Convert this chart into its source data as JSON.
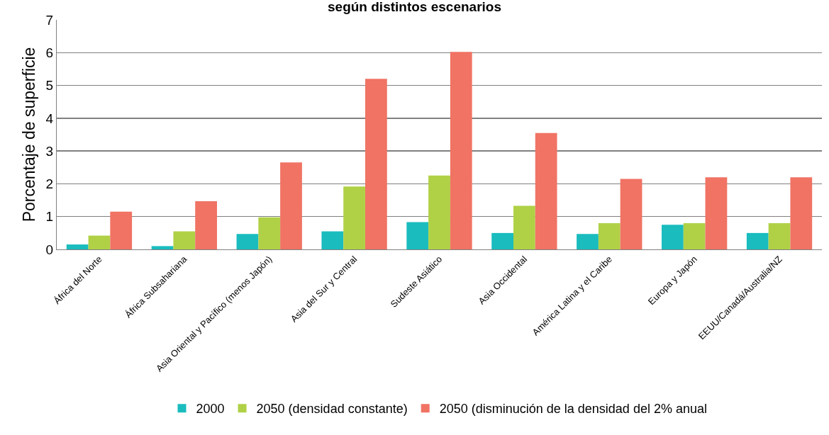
{
  "chart_data": {
    "type": "bar",
    "title": "según distintos escenarios",
    "ylabel": "Porcentaje de superficie",
    "categories": [
      "África del Norte",
      "África Subsahariana",
      "Asia Oriental y Pacífico (menos Japón)",
      "Asia del Sur y Central",
      "Sudeste Asiático",
      "Asia Occidental",
      "América Latina y el Caribe",
      "Europa y Japón",
      "EEUU/Canadá/Australia/NZ"
    ],
    "series": [
      {
        "name": "2000",
        "color": "#1abcbe",
        "values": [
          0.15,
          0.1,
          0.47,
          0.55,
          0.83,
          0.5,
          0.47,
          0.75,
          0.5
        ]
      },
      {
        "name": "2050 (densidad constante)",
        "color": "#b0d146",
        "values": [
          0.42,
          0.55,
          0.98,
          1.92,
          2.25,
          1.33,
          0.8,
          0.8,
          0.8
        ]
      },
      {
        "name": "2050 (disminución de la densidad del 2% anual",
        "color": "#f07364",
        "values": [
          1.15,
          1.47,
          2.65,
          5.2,
          6.02,
          3.55,
          2.15,
          2.2,
          2.2
        ]
      }
    ],
    "ylim": [
      0,
      7
    ],
    "yticks": [
      0,
      1,
      2,
      3,
      4,
      5,
      6,
      7
    ],
    "grid": "y",
    "legend": "bottom"
  }
}
